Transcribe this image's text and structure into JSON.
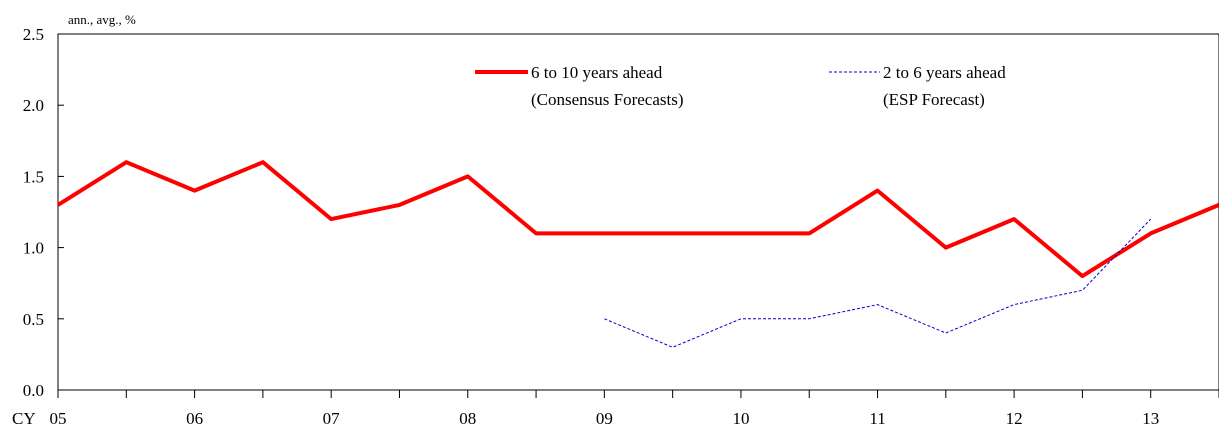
{
  "chart_data": {
    "type": "line",
    "unit_label": "ann., avg., %",
    "x_prefix": "CY",
    "categories": [
      "05",
      "06",
      "07",
      "08",
      "09",
      "10",
      "11",
      "12",
      "13"
    ],
    "x_half_years": [
      2005.0,
      2005.5,
      2006.0,
      2006.5,
      2007.0,
      2007.5,
      2008.0,
      2008.5,
      2009.0,
      2009.5,
      2010.0,
      2010.5,
      2011.0,
      2011.5,
      2012.0,
      2012.5,
      2013.0,
      2013.5
    ],
    "ylim": [
      0.0,
      2.5
    ],
    "xlim": [
      2005.0,
      2013.5
    ],
    "y_ticks": [
      "0.0",
      "0.5",
      "1.0",
      "1.5",
      "2.0",
      "2.5"
    ],
    "grid": false,
    "legend_position": "top",
    "series": [
      {
        "name": "6 to 10 years ahead",
        "name_line2": "(Consensus Forecasts)",
        "color": "#ff0000",
        "style": "solid",
        "points": [
          [
            2005.0,
            1.3
          ],
          [
            2005.5,
            1.6
          ],
          [
            2006.0,
            1.4
          ],
          [
            2006.5,
            1.6
          ],
          [
            2007.0,
            1.2
          ],
          [
            2007.5,
            1.3
          ],
          [
            2008.0,
            1.5
          ],
          [
            2008.5,
            1.1
          ],
          [
            2009.0,
            1.1
          ],
          [
            2009.5,
            1.1
          ],
          [
            2010.0,
            1.1
          ],
          [
            2010.5,
            1.1
          ],
          [
            2011.0,
            1.4
          ],
          [
            2011.5,
            1.0
          ],
          [
            2012.0,
            1.2
          ],
          [
            2012.5,
            0.8
          ],
          [
            2013.0,
            1.1
          ],
          [
            2013.5,
            1.3
          ]
        ]
      },
      {
        "name": "2 to 6 years ahead",
        "name_line2": "(ESP Forecast)",
        "color": "#0000cc",
        "style": "dashed",
        "points": [
          [
            2009.0,
            0.5
          ],
          [
            2009.5,
            0.3
          ],
          [
            2010.0,
            0.5
          ],
          [
            2010.5,
            0.5
          ],
          [
            2011.0,
            0.6
          ],
          [
            2011.5,
            0.4
          ],
          [
            2012.0,
            0.6
          ],
          [
            2012.5,
            0.7
          ],
          [
            2013.0,
            1.2
          ]
        ]
      }
    ]
  }
}
